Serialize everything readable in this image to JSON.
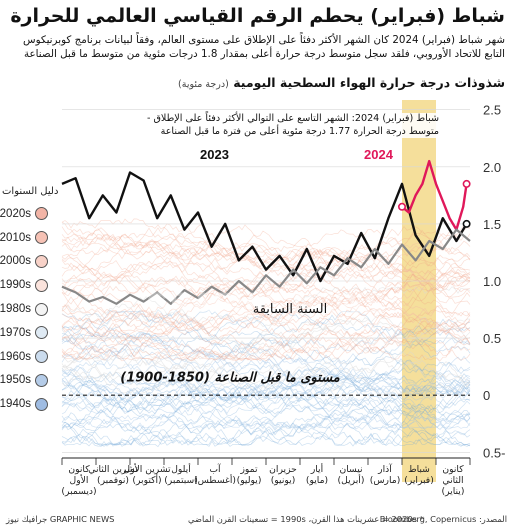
{
  "title": "شباط (فبراير) يحطم الرقم القياسي العالمي للحرارة",
  "intro": {
    "line1": "شهر شباط (فبراير) 2024 كان الشهر الأكثر دفئاً على الإطلاق على مستوى العالم، وفقاً لبيانات برنامج كوبرنيكوس",
    "line2": "التابع للاتحاد الأوروبي، فلقد سجل متوسط درجة حرارة أعلى بمقدار 1.8 درجات مئوية من متوسط ما قبل الصناعة"
  },
  "chart_heading": "شذوذات درجة حرارة الهواء السطحية اليومية",
  "chart_heading_unit": "(درجة مئوية)",
  "annotation": {
    "line1": "شباط (فبراير) 2024: الشهر التاسع على التوالي الأكثر دفئاً على الإطلاق -",
    "line2": "متوسط درجة الحرارة 1.77 درجة مئوية أعلى من فترة ما قبل الصناعة"
  },
  "legend": {
    "title": "دليل السنوات",
    "items": [
      {
        "label": "*2020s",
        "color": "#f2b4a6"
      },
      {
        "label": "2010s",
        "color": "#f6c2b5"
      },
      {
        "label": "2000s",
        "color": "#f8d2c8"
      },
      {
        "label": "1990s",
        "color": "#fbe3dc"
      },
      {
        "label": "1980s",
        "color": "#f4f4f4"
      },
      {
        "label": "1970s",
        "color": "#dfeaf4"
      },
      {
        "label": "1960s",
        "color": "#cbdcee"
      },
      {
        "label": "1950s",
        "color": "#b5cce8"
      },
      {
        "label": "1940s",
        "color": "#9fbce2"
      }
    ]
  },
  "labels": {
    "y2023": "2023",
    "y2024": "2024",
    "previous_year": "السنة السابقة",
    "preindustrial": "مستوى ما قبل الصناعة (1850-1900)"
  },
  "footer": {
    "source": "المصدر: Bloomberg, Copernicus",
    "note": "* 2020s = عشرينات هذا القرن، 1990s = تسعينات القرن الماضي",
    "credit": "جرافيك نيوز GRAPHIC NEWS"
  },
  "watermark": "GRAPHIC NEWS",
  "colors": {
    "line_2023": "#111111",
    "line_2024": "#e0185a",
    "previous_year": "#888888",
    "highlight": "#f3d98a",
    "warm_band": "#f19a80",
    "cool_band": "#6fa6d8"
  },
  "chart_data": {
    "type": "line",
    "x_tick_labels": [
      [
        "كانون",
        "الثاني",
        "(يناير)"
      ],
      [
        "شباط",
        "(فبراير)"
      ],
      [
        "آذار",
        "(مارس)"
      ],
      [
        "نيسان",
        "(أبريل)"
      ],
      [
        "أيار",
        "(مايو)"
      ],
      [
        "حزيران",
        "(يونيو)"
      ],
      [
        "تموز",
        "(يوليو)"
      ],
      [
        "آب",
        "(أغسطس)"
      ],
      [
        "أيلول",
        "(سبتمبر)"
      ],
      [
        "تشرين الأول",
        "(أكتوبر)"
      ],
      [
        "تشرين الثاني",
        "(نوفمبر)"
      ],
      [
        "كانون",
        "الأول",
        "(ديسمبر)"
      ]
    ],
    "y_ticks": [
      2.5,
      2.0,
      1.5,
      1.0,
      0.5,
      0,
      -0.5
    ],
    "y_tick_labels": [
      "2.5",
      "2.0",
      "1.5",
      "1.0",
      "0.5",
      "0",
      "0.5-"
    ],
    "ylim": [
      -0.55,
      2.55
    ],
    "x_axis": "right-to-left",
    "highlight_month": "February",
    "series": [
      {
        "name": "2023",
        "x_months": [
          12.0,
          11.6,
          11.2,
          10.8,
          10.4,
          10.0,
          9.6,
          9.2,
          8.8,
          8.4,
          8.0,
          7.6,
          7.2,
          6.8,
          6.4,
          6.0,
          5.6,
          5.2,
          4.8,
          4.4,
          4.0,
          3.6,
          3.2,
          2.8,
          2.4,
          2.0,
          1.6,
          1.2,
          0.8,
          0.4,
          0.1
        ],
        "values": [
          1.85,
          1.9,
          1.55,
          1.75,
          1.6,
          1.95,
          1.88,
          1.55,
          1.75,
          1.45,
          1.6,
          1.3,
          1.5,
          1.18,
          1.3,
          1.1,
          1.22,
          1.05,
          1.28,
          1.0,
          1.22,
          1.15,
          1.42,
          1.2,
          1.55,
          1.85,
          1.4,
          1.22,
          1.55,
          1.35,
          1.5
        ]
      },
      {
        "name": "2024",
        "x_months": [
          2.0,
          1.8,
          1.6,
          1.4,
          1.2,
          1.0,
          0.8,
          0.6,
          0.4,
          0.2,
          0.1
        ],
        "values": [
          1.65,
          1.6,
          1.75,
          1.85,
          2.05,
          1.85,
          1.7,
          1.55,
          1.45,
          1.65,
          1.85
        ]
      },
      {
        "name": "السنة السابقة",
        "x_months": [
          0.0,
          0.4,
          0.8,
          1.2,
          1.6,
          2.0,
          2.4,
          2.8,
          3.2,
          3.6,
          4.0,
          4.4,
          4.8,
          5.2,
          5.6,
          6.0,
          6.4,
          6.8,
          7.2,
          7.6,
          8.0,
          8.4,
          8.8,
          9.2,
          9.6,
          10.0,
          10.4,
          10.8,
          11.2,
          11.6,
          12.0
        ],
        "values": [
          1.35,
          1.45,
          1.28,
          1.35,
          1.18,
          1.32,
          1.15,
          1.28,
          1.12,
          1.2,
          1.05,
          1.12,
          0.98,
          1.1,
          0.95,
          1.05,
          0.9,
          1.0,
          0.88,
          0.95,
          0.85,
          0.92,
          0.8,
          0.9,
          0.82,
          0.88,
          0.8,
          0.86,
          0.82,
          0.9,
          0.95
        ]
      }
    ]
  }
}
